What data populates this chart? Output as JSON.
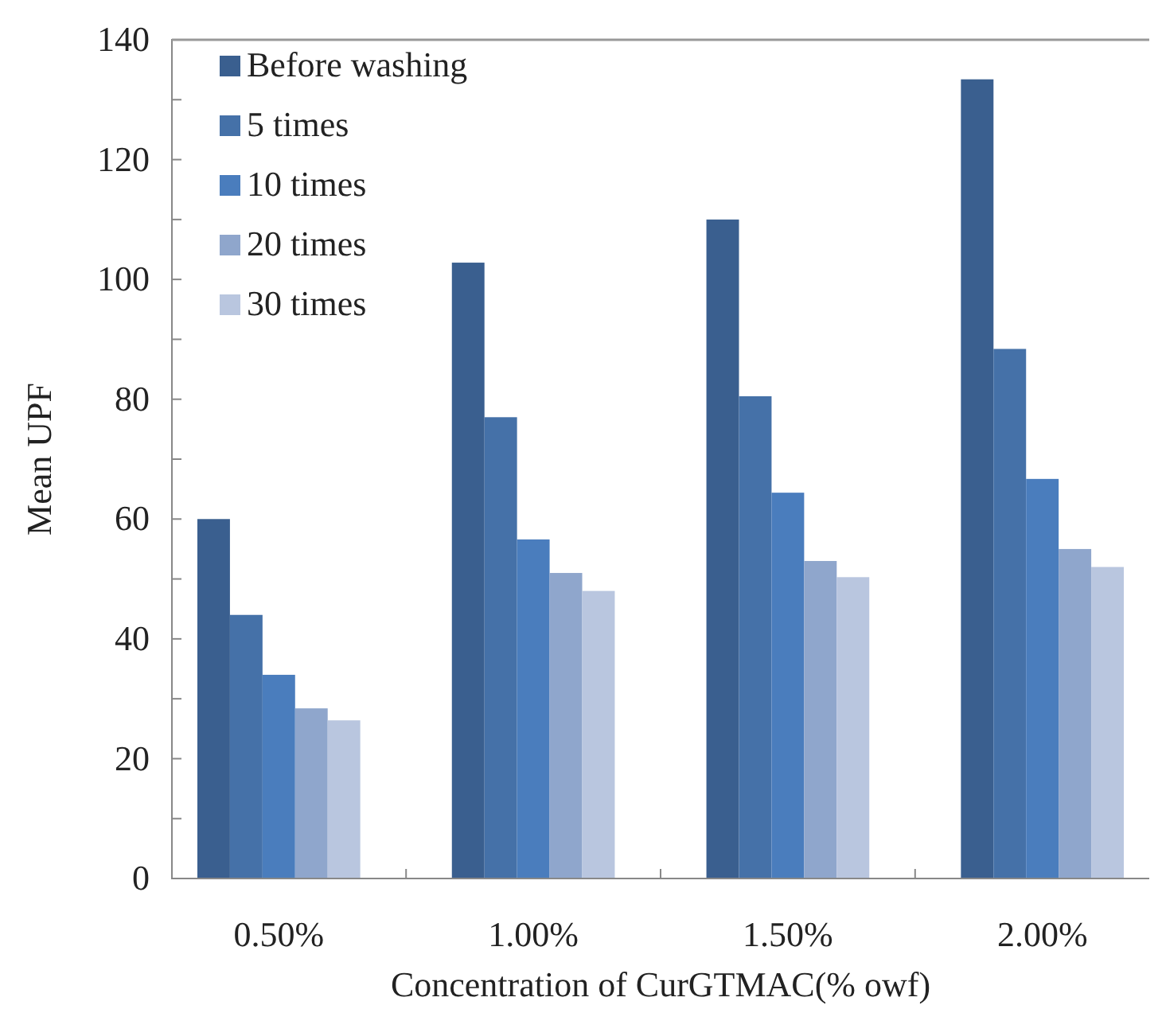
{
  "chart_data": {
    "type": "bar",
    "xlabel": "Concentration  of CurGTMAC(% owf)",
    "ylabel": "Mean UPF",
    "categories": [
      "0.50%",
      "1.00%",
      "1.50%",
      "2.00%"
    ],
    "series": [
      {
        "name": "Before washing",
        "color": "#3a5f8f",
        "values": [
          60,
          102.8,
          110,
          133.4
        ]
      },
      {
        "name": "5 times",
        "color": "#4571a8",
        "values": [
          44,
          77,
          80.5,
          88.4
        ]
      },
      {
        "name": "10 times",
        "color": "#4a7dbd",
        "values": [
          34,
          56.6,
          64.4,
          66.7
        ]
      },
      {
        "name": "20 times",
        "color": "#8fa6cc",
        "values": [
          28.4,
          51,
          53,
          55
        ]
      },
      {
        "name": "30 times",
        "color": "#b9c6df",
        "values": [
          26.4,
          48,
          50.3,
          52
        ]
      }
    ],
    "ylim": [
      0,
      140
    ],
    "yticks": [
      0,
      {
        "value": 10,
        "label": null
      },
      20,
      {
        "value": 30,
        "label": null
      },
      40,
      {
        "value": 50,
        "label": null
      },
      60,
      {
        "value": 70,
        "label": null
      },
      80,
      {
        "value": 90,
        "label": null
      },
      100,
      {
        "value": 110,
        "label": null
      },
      120,
      {
        "value": 130,
        "label": null
      },
      140
    ],
    "legend": "top left",
    "grid": false
  }
}
